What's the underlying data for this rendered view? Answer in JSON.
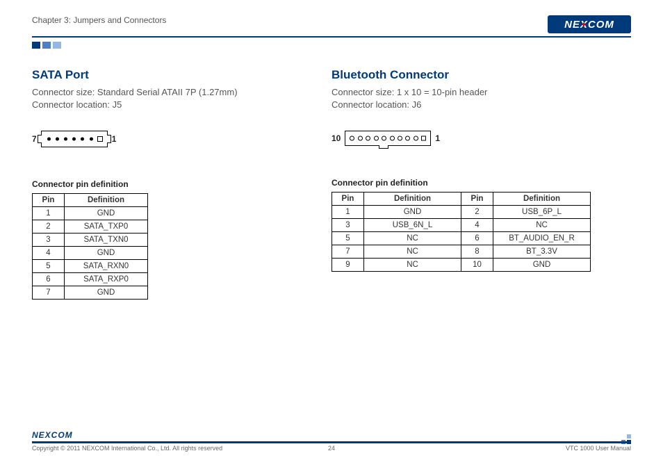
{
  "header": {
    "chapter": "Chapter 3: Jumpers and Connectors",
    "logo_text_1": "NE",
    "logo_text_x": "X",
    "logo_text_2": "COM"
  },
  "colors": {
    "brand_blue": "#003a7a",
    "accent_red": "#d00000",
    "square1": "#003a7a",
    "square2": "#4f7fc2",
    "square3": "#95b7e4"
  },
  "left": {
    "title": "SATA Port",
    "line1": "Connector size: Standard Serial ATAII 7P (1.27mm)",
    "line2": "Connector location: J5",
    "diagram_left_label": "7",
    "diagram_right_label": "1",
    "table_title": "Connector pin definition",
    "headers": {
      "pin": "Pin",
      "def": "Definition"
    },
    "rows": [
      {
        "pin": "1",
        "def": "GND"
      },
      {
        "pin": "2",
        "def": "SATA_TXP0"
      },
      {
        "pin": "3",
        "def": "SATA_TXN0"
      },
      {
        "pin": "4",
        "def": "GND"
      },
      {
        "pin": "5",
        "def": "SATA_RXN0"
      },
      {
        "pin": "6",
        "def": "SATA_RXP0"
      },
      {
        "pin": "7",
        "def": "GND"
      }
    ]
  },
  "right": {
    "title": "Bluetooth Connector",
    "line1": "Connector size: 1 x 10 = 10-pin header",
    "line2": "Connector location: J6",
    "diagram_left_label": "10",
    "diagram_right_label": "1",
    "table_title": "Connector pin definition",
    "headers": {
      "pin": "Pin",
      "def": "Definition"
    },
    "rows": [
      {
        "p1": "1",
        "d1": "GND",
        "p2": "2",
        "d2": "USB_6P_L"
      },
      {
        "p1": "3",
        "d1": "USB_6N_L",
        "p2": "4",
        "d2": "NC"
      },
      {
        "p1": "5",
        "d1": "NC",
        "p2": "6",
        "d2": "BT_AUDIO_EN_R"
      },
      {
        "p1": "7",
        "d1": "NC",
        "p2": "8",
        "d2": "BT_3.3V"
      },
      {
        "p1": "9",
        "d1": "NC",
        "p2": "10",
        "d2": "GND"
      }
    ]
  },
  "footer": {
    "logo": "NEXCOM",
    "copyright": "Copyright © 2011 NEXCOM International Co., Ltd. All rights reserved",
    "page": "24",
    "manual": "VTC 1000 User Manual"
  }
}
